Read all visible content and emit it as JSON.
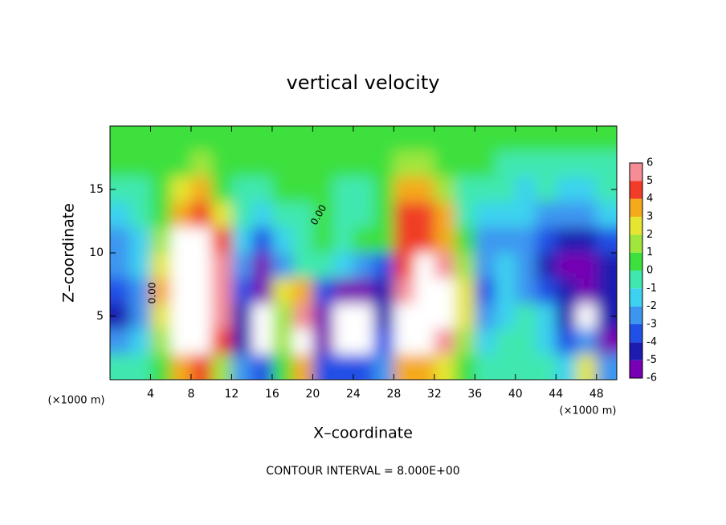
{
  "chart_data": {
    "type": "heatmap",
    "title": "vertical velocity",
    "x_label": "X–coordinate",
    "y_label": "Z–coordinate",
    "x_unit_labels": [
      "(×1000 m)",
      "(×1000 m)"
    ],
    "footnote": "CONTOUR INTERVAL = 8.000E+00",
    "contour_label": "0.00",
    "xlim": [
      0,
      50
    ],
    "ylim": [
      0,
      20
    ],
    "xticks": [
      4,
      8,
      12,
      16,
      20,
      24,
      28,
      32,
      36,
      40,
      44,
      48
    ],
    "yticks": [
      5,
      10,
      15
    ],
    "x": [
      1,
      3,
      5,
      7,
      9,
      11,
      13,
      15,
      17,
      19,
      21,
      23,
      25,
      27,
      29,
      31,
      33,
      35,
      37,
      39,
      41,
      43,
      45,
      47,
      49
    ],
    "y": [
      19,
      17,
      15,
      13,
      11,
      9,
      7,
      5,
      3,
      1
    ],
    "values": [
      [
        0.5,
        0.5,
        0.5,
        0.5,
        0.5,
        0.5,
        0.5,
        0.5,
        0.5,
        0.5,
        0.5,
        0.5,
        0.5,
        0.5,
        1,
        1,
        0.5,
        0.5,
        0.5,
        0.5,
        0.5,
        0.5,
        0.5,
        0.5,
        0.5
      ],
      [
        0.3,
        0.3,
        0.3,
        1,
        1.5,
        0.5,
        0.3,
        0.3,
        0.3,
        0.3,
        0.3,
        0.3,
        0.3,
        0.3,
        2,
        2,
        0.3,
        0.3,
        0.3,
        0,
        0,
        0,
        0,
        0,
        0
      ],
      [
        0,
        0,
        0.5,
        3,
        4,
        1,
        0,
        0,
        0.5,
        0.5,
        0.5,
        0,
        0,
        0.5,
        4,
        4,
        2,
        0,
        -0.5,
        -0.5,
        -1,
        -0.5,
        -1,
        -1,
        -0.5
      ],
      [
        -1,
        -0.5,
        1,
        4,
        5,
        3,
        0,
        -1,
        0,
        0,
        0.5,
        0,
        0,
        0.5,
        5,
        5,
        4,
        0,
        -1,
        -1.5,
        -1.5,
        -2,
        -2,
        -2,
        -1.5
      ],
      [
        -2,
        -1,
        2,
        7,
        7,
        5,
        -1,
        -3,
        -1,
        0,
        0.5,
        0,
        0.5,
        1,
        5,
        5,
        4,
        1,
        -2,
        -2,
        -2,
        -3,
        -4,
        -4,
        -3
      ],
      [
        -2,
        -1,
        3,
        9,
        9,
        6,
        -2,
        -5,
        -2,
        0,
        0,
        -1,
        -2,
        -3,
        5,
        7,
        6,
        2,
        -2,
        -1,
        -2,
        -4,
        -5,
        -5,
        -4
      ],
      [
        -3,
        -2,
        4,
        9,
        9,
        6,
        -3,
        -5,
        3,
        4,
        -3,
        -5,
        -6,
        -4,
        6,
        8,
        8,
        3,
        -3,
        -1,
        -2,
        -3,
        -4,
        -5,
        -4
      ],
      [
        -4,
        -2,
        3,
        9,
        9,
        6,
        -4,
        8,
        2,
        6,
        -5,
        8,
        8,
        -4,
        7,
        9,
        8,
        3,
        -2,
        -1,
        0,
        -1,
        -4,
        7,
        -4
      ],
      [
        -2,
        -1,
        2,
        9,
        9,
        5,
        -4,
        8,
        2,
        9,
        -5,
        8,
        8,
        -3,
        7,
        9,
        6,
        2,
        -1,
        0,
        0,
        -1,
        -3,
        -2,
        -5
      ],
      [
        0,
        0,
        1,
        4,
        5,
        2,
        -2,
        -3,
        1,
        4,
        -3,
        -3,
        -3,
        -2,
        4,
        4,
        3,
        1,
        0,
        0,
        0,
        -0.5,
        -1,
        3,
        -2
      ]
    ],
    "colorbar": {
      "levels": [
        -6,
        -5,
        -4,
        -3,
        -2,
        -1,
        0,
        1,
        2,
        3,
        4,
        5,
        6
      ],
      "colors": [
        "#7800b4",
        "#1c1cb0",
        "#2050e6",
        "#3c96f0",
        "#3cd2f0",
        "#40e8b0",
        "#3ee03e",
        "#a0e63c",
        "#e6e632",
        "#f5aa1e",
        "#f03c28",
        "#f58c96"
      ],
      "over_color": "#ffffff"
    }
  }
}
